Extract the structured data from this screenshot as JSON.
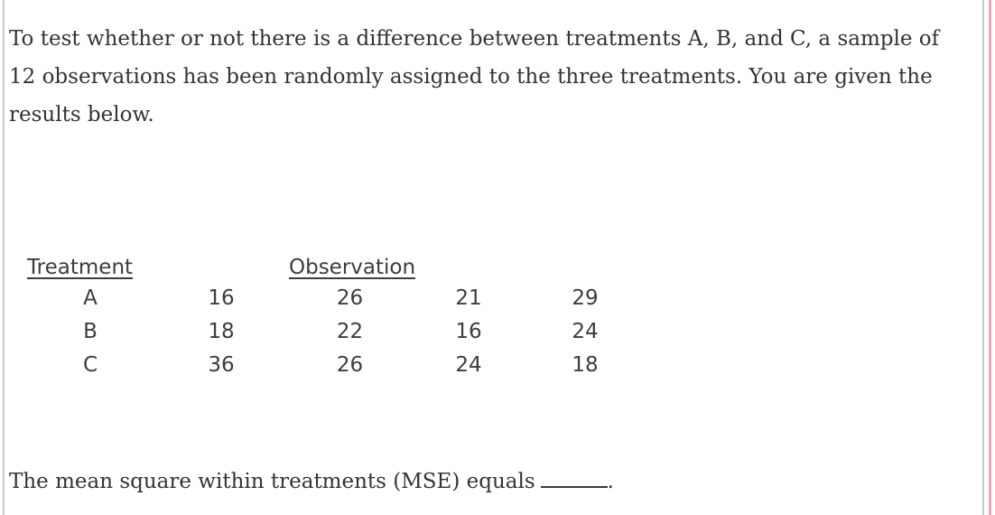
{
  "question": {
    "paragraph_lines": [
      "To test whether or not there is a difference between treatments A, B, and C, a sample of",
      "12 observations has been randomly assigned to the three treatments. You are given the",
      "results below."
    ]
  },
  "table": {
    "headers": {
      "treatment": "Treatment",
      "observation": "Observation"
    },
    "rows": [
      {
        "treatment": "A",
        "values": [
          "16",
          "26",
          "21",
          "29"
        ]
      },
      {
        "treatment": "B",
        "values": [
          "18",
          "22",
          "16",
          "24"
        ]
      },
      {
        "treatment": "C",
        "values": [
          "36",
          "26",
          "24",
          "18"
        ]
      }
    ]
  },
  "answer_line": {
    "prefix": "The mean square within treatments (MSE) equals",
    "suffix": "."
  },
  "colors": {
    "text": "#333333",
    "border_gray": "#c9c9c9",
    "accent_pink": "#f0a3c2"
  }
}
